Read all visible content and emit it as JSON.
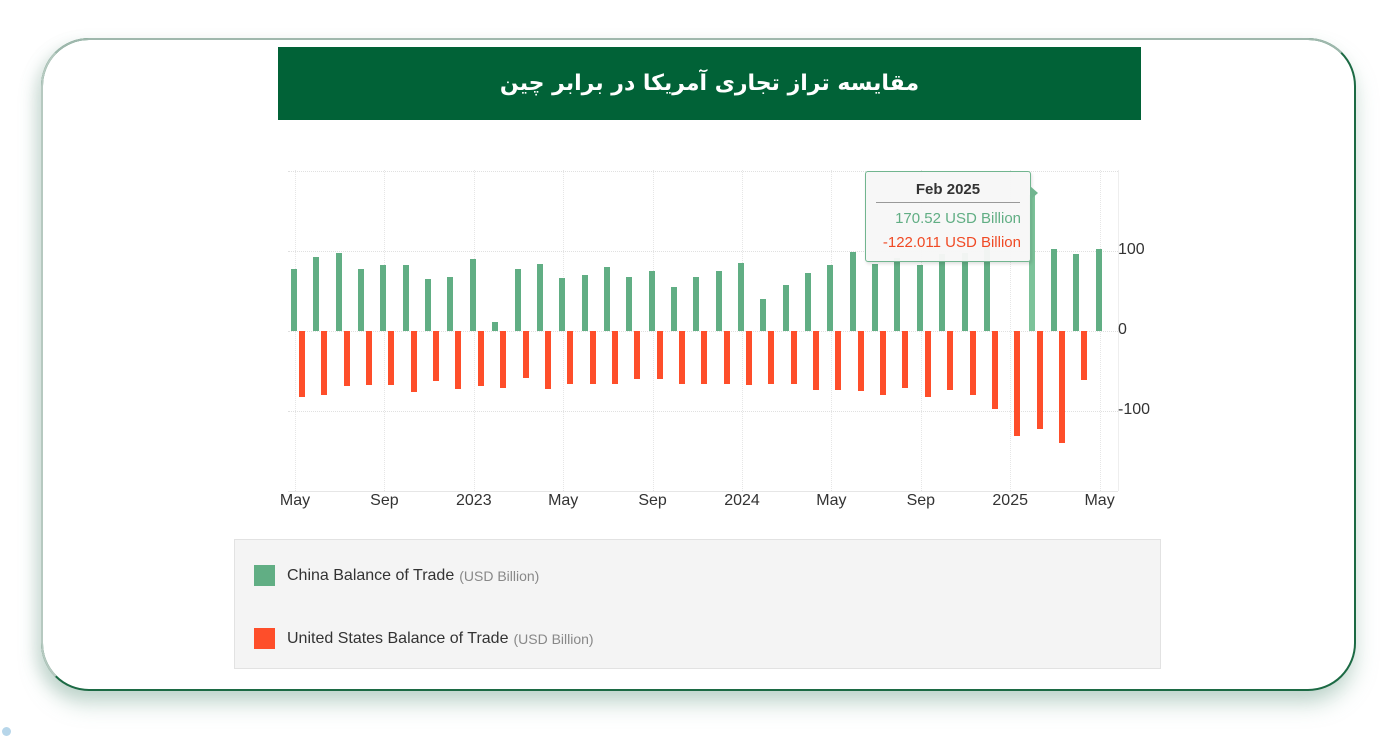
{
  "title": "مقایسه تراز تجاری آمریکا در برابر چین",
  "colors": {
    "title_bg": "#016237",
    "china": "#61ae84",
    "us": "#fe4e2a",
    "frame": "#1c6a44"
  },
  "tooltip": {
    "title": "Feb 2025",
    "china_value": "170.52 USD Billion",
    "us_value": "-122.011 USD Billion"
  },
  "legend": [
    {
      "name": "China Balance of Trade",
      "unit": "(USD Billion)",
      "color": "#61ae84"
    },
    {
      "name": "United States Balance of Trade",
      "unit": "(USD Billion)",
      "color": "#fe4e2a"
    }
  ],
  "y_ticks": [
    "100",
    "0",
    "-100"
  ],
  "x_ticks": [
    "May",
    "Sep",
    "2023",
    "May",
    "Sep",
    "2024",
    "May",
    "Sep",
    "2025",
    "May"
  ],
  "chart_data": {
    "type": "bar",
    "title": "مقایسه تراز تجاری آمریکا در برابر چین",
    "xlabel": "",
    "ylabel": "USD Billion",
    "ylim": [
      -200,
      200
    ],
    "grid": true,
    "legend_position": "bottom",
    "y_axis_side": "right",
    "categories": [
      "May 2022",
      "Jun 2022",
      "Jul 2022",
      "Aug 2022",
      "Sep 2022",
      "Oct 2022",
      "Nov 2022",
      "Dec 2022",
      "Jan 2023",
      "Feb 2023",
      "Mar 2023",
      "Apr 2023",
      "May 2023",
      "Jun 2023",
      "Jul 2023",
      "Aug 2023",
      "Sep 2023",
      "Oct 2023",
      "Nov 2023",
      "Dec 2023",
      "Jan 2024",
      "Feb 2024",
      "Mar 2024",
      "Apr 2024",
      "May 2024",
      "Jun 2024",
      "Jul 2024",
      "Aug 2024",
      "Sep 2024",
      "Oct 2024",
      "Nov 2024",
      "Dec 2024",
      "Jan 2025",
      "Feb 2025",
      "Mar 2025",
      "Apr 2025",
      "May 2025"
    ],
    "series": [
      {
        "name": "China Balance of Trade (USD Billion)",
        "color": "#61ae84",
        "values": [
          77,
          92,
          98,
          77,
          82,
          82,
          65,
          68,
          90,
          11,
          77,
          84,
          66,
          70,
          80,
          68,
          75,
          55,
          68,
          75,
          85,
          40,
          58,
          73,
          83,
          99,
          84,
          91,
          82,
          96,
          97,
          105,
          null,
          170.52,
          102,
          96,
          103
        ]
      },
      {
        "name": "United States Balance of Trade (USD Billion)",
        "color": "#fe4e2a",
        "values": [
          -83,
          -80,
          -69,
          -68,
          -68,
          -76,
          -63,
          -72,
          -69,
          -71,
          -59,
          -72,
          -66,
          -66,
          -66,
          -60,
          -60,
          -66,
          -66,
          -66,
          -68,
          -66,
          -66,
          -74,
          -74,
          -75,
          -80,
          -71,
          -82,
          -74,
          -80,
          -98,
          -131,
          -122.011,
          -140,
          -61.6,
          null
        ]
      }
    ]
  }
}
